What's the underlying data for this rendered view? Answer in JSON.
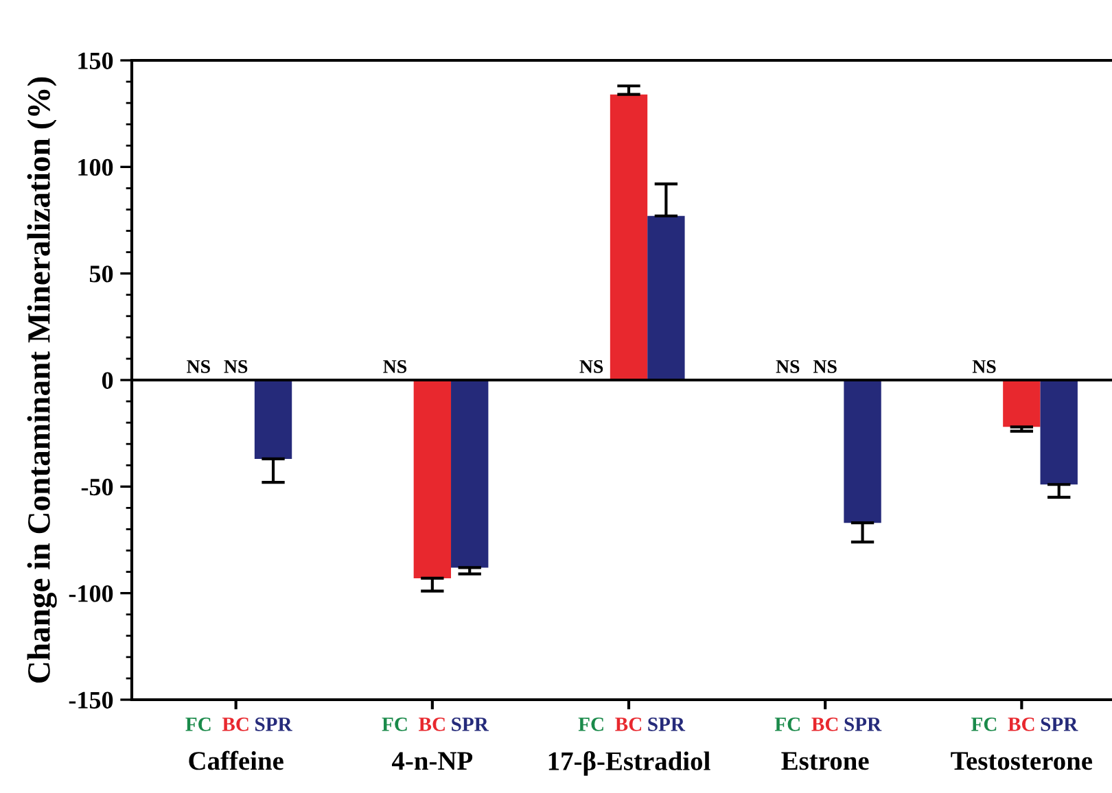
{
  "chart_data": {
    "type": "bar",
    "ylabel": "Change in Contaminant Mineralization (%)",
    "categories": [
      "Caffeine",
      "4-n-NP",
      "17-β-Estradiol",
      "Estrone",
      "Testosterone"
    ],
    "series": [
      {
        "name": "FC",
        "color": "#1a8a4a",
        "values": [
          null,
          null,
          null,
          null,
          null
        ],
        "value_labels": [
          "NS",
          "NS",
          "NS",
          "NS",
          "NS"
        ]
      },
      {
        "name": "BC",
        "color": "#e8282e",
        "values": [
          null,
          -93,
          134,
          null,
          -22
        ],
        "errors": [
          null,
          [
            -99,
            -93
          ],
          [
            134,
            138
          ],
          null,
          [
            -24,
            -22
          ]
        ],
        "value_labels": [
          "NS",
          null,
          null,
          "NS",
          null
        ]
      },
      {
        "name": "SPR",
        "color": "#252a7a",
        "values": [
          -37,
          -88,
          77,
          -67,
          -49
        ],
        "errors": [
          [
            -48,
            -37
          ],
          [
            -91,
            -88
          ],
          [
            77,
            92
          ],
          [
            -76,
            -67
          ],
          [
            -55,
            -49
          ]
        ]
      }
    ],
    "ylim": [
      -150,
      150
    ],
    "yticks": [
      -150,
      -100,
      -50,
      0,
      50,
      100,
      150
    ],
    "ref_lines": [
      {
        "axis": "y",
        "value": 0
      }
    ],
    "grid": false,
    "legend": false
  }
}
